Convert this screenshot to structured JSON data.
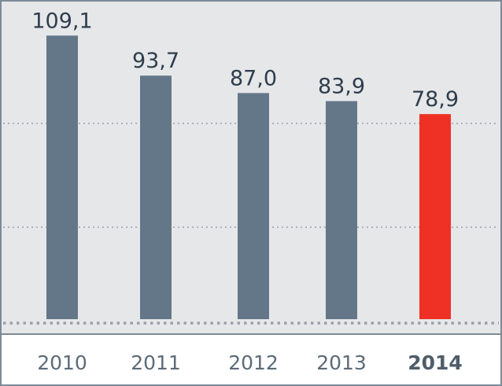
{
  "chart_data": {
    "type": "bar",
    "categories": [
      "2010",
      "2011",
      "2012",
      "2013",
      "2014"
    ],
    "values": [
      109.1,
      93.7,
      87.0,
      83.9,
      78.9
    ],
    "value_labels": [
      "109,1",
      "93,7",
      "87,0",
      "83,9",
      "78,9"
    ],
    "highlight_index": 4,
    "title": "",
    "xlabel": "",
    "ylabel": "",
    "ylim": [
      0,
      110.7
    ],
    "grid": "dotted horizontal",
    "legend": "none"
  },
  "colors": {
    "plot_bg": "#e6e7e9",
    "bar": "#647789",
    "highlight": "#ee3124",
    "grid": "#9aa1a8",
    "axis_frame": "#7b8a97"
  }
}
